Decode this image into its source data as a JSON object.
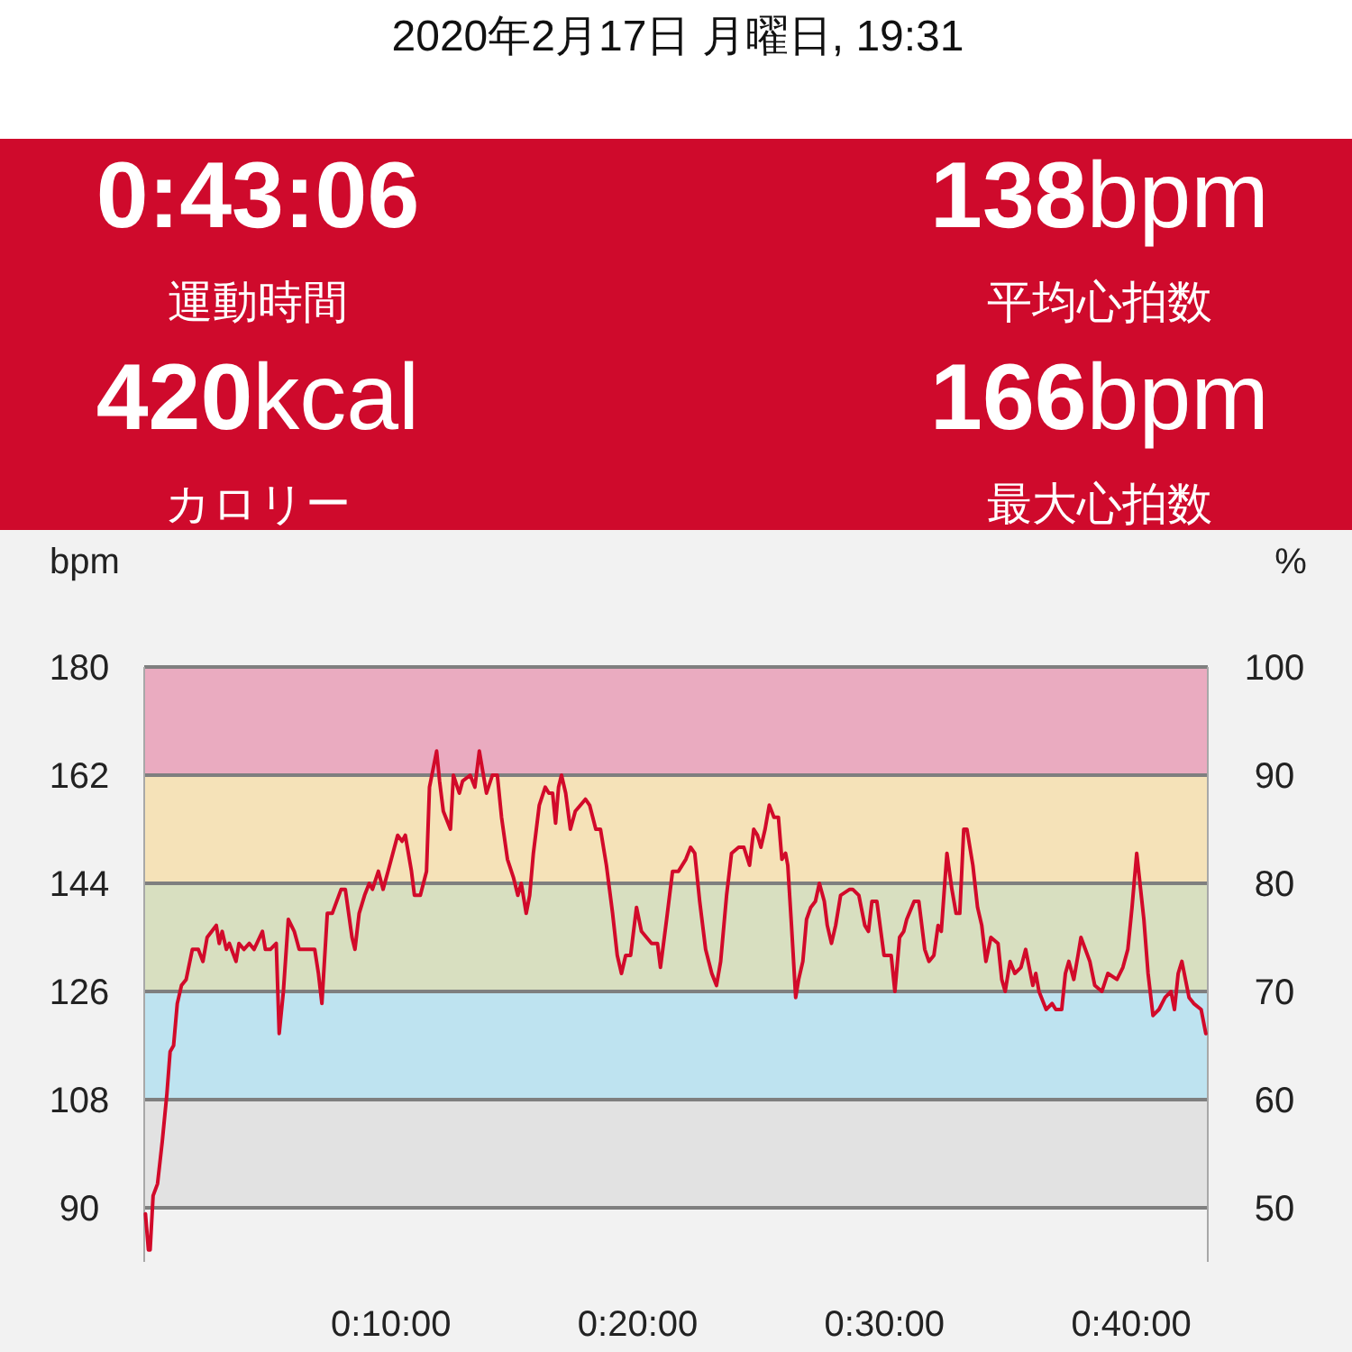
{
  "chart_data": [
    {
      "type": "other",
      "title": "2020年2月17日 月曜日, 19:31",
      "annotations": [
        "0:43:06",
        "運動時間",
        "138bpm",
        "平均心拍数",
        "420kcal",
        "カロリー",
        "166bpm",
        "最大心拍数"
      ]
    },
    {
      "type": "line",
      "ylabel": "bpm",
      "y2label": "%",
      "x": [
        0.05,
        0.17,
        0.24,
        0.36,
        0.54,
        0.73,
        0.92,
        1.05,
        1.19,
        1.34,
        1.51,
        1.7,
        1.95,
        2.19,
        2.38,
        2.55,
        2.92,
        3.04,
        3.16,
        3.33,
        3.45,
        3.72,
        3.84,
        4.04,
        4.26,
        4.45,
        4.79,
        4.91,
        5.11,
        5.35,
        5.47,
        5.64,
        5.84,
        6.08,
        6.28,
        6.57,
        6.91,
        7.06,
        7.2,
        7.42,
        7.62,
        7.98,
        8.15,
        8.42,
        8.54,
        8.71,
        8.93,
        9.12,
        9.25,
        9.49,
        9.68,
        9.88,
        10.27,
        10.45,
        10.58,
        10.83,
        10.95,
        11.19,
        11.44,
        11.56,
        11.85,
        11.97,
        12.12,
        12.41,
        12.53,
        12.77,
        12.9,
        13.21,
        13.4,
        13.58,
        13.87,
        14.11,
        14.31,
        14.48,
        14.72,
        14.96,
        15.14,
        15.28,
        15.48,
        15.62,
        15.77,
        16.01,
        16.25,
        16.4,
        16.55,
        16.67,
        16.79,
        16.91,
        17.08,
        17.27,
        17.47,
        17.88,
        18.05,
        18.3,
        18.49,
        18.73,
        18.98,
        19.17,
        19.34,
        19.51,
        19.71,
        19.95,
        20.15,
        20.56,
        20.8,
        20.92,
        21.17,
        21.41,
        21.65,
        21.95,
        22.14,
        22.31,
        22.51,
        22.75,
        23.0,
        23.19,
        23.36,
        23.6,
        23.8,
        24.09,
        24.3,
        24.53,
        24.7,
        24.85,
        24.99,
        25.16,
        25.33,
        25.52,
        25.7,
        25.84,
        25.99,
        26.08,
        26.23,
        26.4,
        26.52,
        26.69,
        26.84,
        27.01,
        27.2,
        27.36,
        27.56,
        27.68,
        27.85,
        28.02,
        28.22,
        28.59,
        28.71,
        28.96,
        29.2,
        29.35,
        29.49,
        29.69,
        29.98,
        30.27,
        30.42,
        30.61,
        30.78,
        30.9,
        31.2,
        31.39,
        31.63,
        31.8,
        32.0,
        32.17,
        32.3,
        32.53,
        32.73,
        32.9,
        33.05,
        33.21,
        33.34,
        33.58,
        33.77,
        33.94,
        34.11,
        34.31,
        34.6,
        34.75,
        34.89,
        35.09,
        35.28,
        35.53,
        35.72,
        36.01,
        36.13,
        36.26,
        36.55,
        36.79,
        36.94,
        37.18,
        37.33,
        37.47,
        37.67,
        37.84,
        37.96,
        38.32,
        38.52,
        38.81,
        39.05,
        39.42,
        39.66,
        39.86,
        40.03,
        40.22,
        40.51,
        40.68,
        40.88,
        41.12,
        41.37,
        41.61,
        41.75,
        41.9,
        42.05,
        42.34,
        42.53,
        42.83,
        43.02
      ],
      "series": [
        {
          "color": "#d20a2a",
          "values": [
            89,
            83,
            83,
            92,
            94,
            101,
            109,
            116,
            117,
            124,
            127,
            128,
            133,
            133,
            131,
            135,
            137,
            134,
            136,
            133,
            134,
            131,
            134,
            133,
            134,
            133,
            136,
            133,
            133,
            134,
            119,
            126,
            138,
            136,
            133,
            133,
            133,
            129,
            124,
            139,
            139,
            143,
            143,
            135,
            133,
            139,
            142,
            144,
            143,
            146,
            143,
            146,
            152,
            151,
            152,
            146,
            142,
            142,
            146,
            160,
            166,
            161,
            156,
            153,
            162,
            159,
            161,
            162,
            160,
            166,
            159,
            162,
            162,
            155,
            148,
            145,
            142,
            144,
            139,
            142,
            149,
            157,
            160,
            159,
            159,
            154,
            160,
            162,
            159,
            153,
            156,
            158,
            157,
            153,
            153,
            147,
            139,
            132,
            129,
            132,
            132,
            140,
            136,
            134,
            134,
            130,
            138,
            146,
            146,
            148,
            150,
            149,
            141,
            133,
            129,
            127,
            131,
            142,
            149,
            150,
            150,
            147,
            153,
            152,
            150,
            153,
            157,
            155,
            155,
            148,
            149,
            147,
            137,
            125,
            128,
            131,
            138,
            140,
            141,
            144,
            141,
            137,
            134,
            137,
            142,
            143,
            143,
            142,
            137,
            136,
            141,
            141,
            132,
            132,
            126,
            135,
            136,
            138,
            141,
            141,
            133,
            131,
            132,
            137,
            136,
            149,
            143,
            139,
            139,
            153,
            153,
            147,
            140,
            137,
            131,
            135,
            134,
            128,
            126,
            131,
            129,
            130,
            133,
            127,
            129,
            126,
            123,
            124,
            123,
            123,
            129,
            131,
            128,
            132,
            135,
            131,
            127,
            126,
            129,
            128,
            130,
            133,
            140,
            149,
            138,
            129,
            122,
            123,
            125,
            126,
            123,
            129,
            131,
            125,
            124,
            123,
            119
          ]
        }
      ],
      "xlim": [
        0,
        43.1
      ],
      "xticks": [
        {
          "value": 10,
          "label": "0:10:00"
        },
        {
          "value": 20,
          "label": "0:20:00"
        },
        {
          "value": 30,
          "label": "0:30:00"
        },
        {
          "value": 40,
          "label": "0:40:00"
        }
      ],
      "ylim": [
        81,
        180
      ],
      "yticks": [
        90,
        108,
        126,
        144,
        162,
        180
      ],
      "y2lim": [
        45,
        100
      ],
      "y2ticks": [
        50,
        60,
        70,
        80,
        90,
        100
      ],
      "grid": "y",
      "bands": [
        {
          "axis": "y",
          "from": 90,
          "to": 108,
          "color": "#e2e2e2"
        },
        {
          "axis": "y",
          "from": 108,
          "to": 126,
          "color": "#bee3f0"
        },
        {
          "axis": "y",
          "from": 126,
          "to": 144,
          "color": "#d8dfc0"
        },
        {
          "axis": "y",
          "from": 144,
          "to": 162,
          "color": "#f5e2b8"
        },
        {
          "axis": "y",
          "from": 162,
          "to": 180,
          "color": "#eaabc0"
        }
      ]
    }
  ]
}
